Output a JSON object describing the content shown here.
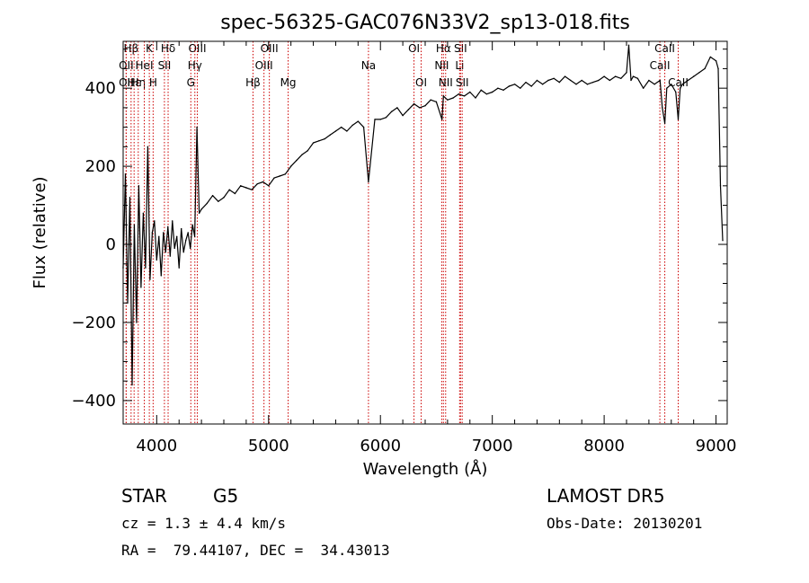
{
  "chart_data": {
    "type": "line",
    "title": "spec-56325-GAC076N33V2_sp13-018.fits",
    "xlabel": "Wavelength (Å)",
    "ylabel": "Flux (relative)",
    "xlim": [
      3700,
      9100
    ],
    "ylim": [
      -460,
      520
    ],
    "xticks": [
      4000,
      5000,
      6000,
      7000,
      8000,
      9000
    ],
    "yticks": [
      -400,
      -200,
      0,
      200,
      400
    ],
    "grid": false,
    "line_color": "#000000",
    "marker_color": "#cc0000",
    "series": [
      {
        "x": [
          3700,
          3720,
          3740,
          3760,
          3780,
          3800,
          3820,
          3840,
          3860,
          3880,
          3900,
          3920,
          3940,
          3960,
          3980,
          4000,
          4020,
          4040,
          4060,
          4080,
          4100,
          4120,
          4140,
          4160,
          4180,
          4200,
          4220,
          4240,
          4260,
          4280,
          4300,
          4320,
          4340,
          4360,
          4380,
          4400,
          4450,
          4500,
          4550,
          4600,
          4650,
          4700,
          4750,
          4800,
          4850,
          4900,
          4950,
          5000,
          5050,
          5100,
          5150,
          5200,
          5250,
          5300,
          5350,
          5400,
          5450,
          5500,
          5550,
          5600,
          5650,
          5700,
          5750,
          5800,
          5850,
          5893,
          5950,
          6000,
          6050,
          6100,
          6150,
          6200,
          6250,
          6300,
          6350,
          6400,
          6450,
          6500,
          6550,
          6563,
          6600,
          6650,
          6700,
          6750,
          6800,
          6850,
          6900,
          6950,
          7000,
          7050,
          7100,
          7150,
          7200,
          7250,
          7300,
          7350,
          7400,
          7450,
          7500,
          7550,
          7600,
          7650,
          7700,
          7750,
          7800,
          7850,
          7900,
          7950,
          8000,
          8050,
          8100,
          8150,
          8200,
          8220,
          8240,
          8260,
          8300,
          8350,
          8400,
          8450,
          8500,
          8520,
          8542,
          8560,
          8600,
          8640,
          8662,
          8680,
          8700,
          8750,
          8800,
          8850,
          8900,
          8950,
          9000,
          9020,
          9040,
          9060
        ],
        "y": [
          -60,
          180,
          -150,
          120,
          -360,
          50,
          -200,
          150,
          -110,
          80,
          -60,
          250,
          -90,
          30,
          60,
          -40,
          20,
          -80,
          30,
          -20,
          45,
          -30,
          60,
          -10,
          20,
          -60,
          40,
          -20,
          10,
          30,
          -10,
          50,
          20,
          300,
          80,
          90,
          105,
          125,
          110,
          120,
          140,
          130,
          150,
          145,
          140,
          155,
          160,
          150,
          170,
          175,
          180,
          200,
          215,
          230,
          240,
          260,
          265,
          270,
          280,
          290,
          300,
          290,
          305,
          315,
          300,
          160,
          320,
          320,
          325,
          340,
          350,
          330,
          345,
          360,
          350,
          355,
          370,
          365,
          320,
          380,
          370,
          375,
          385,
          380,
          390,
          375,
          395,
          385,
          390,
          400,
          395,
          405,
          410,
          400,
          415,
          405,
          420,
          410,
          420,
          425,
          415,
          430,
          420,
          410,
          420,
          410,
          415,
          420,
          430,
          420,
          430,
          425,
          440,
          510,
          420,
          430,
          425,
          400,
          420,
          410,
          420,
          350,
          310,
          400,
          410,
          390,
          320,
          400,
          410,
          420,
          430,
          440,
          450,
          480,
          470,
          450,
          150,
          10
        ]
      }
    ],
    "lines": [
      {
        "label": "Hβ",
        "x": 3771,
        "row": 1
      },
      {
        "label": "OII",
        "x": 3727,
        "row": 2
      },
      {
        "label": "OII",
        "x": 3727,
        "row": 3
      },
      {
        "label": "Hε",
        "x": 3798,
        "row": 3
      },
      {
        "label": "Hη",
        "x": 3835,
        "row": 3
      },
      {
        "label": "HeI",
        "x": 3889,
        "row": 2
      },
      {
        "label": "K",
        "x": 3934,
        "row": 1
      },
      {
        "label": "H",
        "x": 3968,
        "row": 3
      },
      {
        "label": "SII",
        "x": 4069,
        "row": 2
      },
      {
        "label": "Hδ",
        "x": 4102,
        "row": 1
      },
      {
        "label": "G",
        "x": 4305,
        "row": 3
      },
      {
        "label": "OIII",
        "x": 4363,
        "row": 1
      },
      {
        "label": "Hγ",
        "x": 4341,
        "row": 2
      },
      {
        "label": "Hβ",
        "x": 4861,
        "row": 3
      },
      {
        "label": "OIII",
        "x": 4959,
        "row": 2
      },
      {
        "label": "OIII",
        "x": 5007,
        "row": 1
      },
      {
        "label": "Mg",
        "x": 5175,
        "row": 3
      },
      {
        "label": "Na",
        "x": 5893,
        "row": 2
      },
      {
        "label": "OI",
        "x": 6300,
        "row": 1
      },
      {
        "label": "OI",
        "x": 6364,
        "row": 3
      },
      {
        "label": "NII",
        "x": 6548,
        "row": 2
      },
      {
        "label": "Hα",
        "x": 6563,
        "row": 1
      },
      {
        "label": "NII",
        "x": 6583,
        "row": 3
      },
      {
        "label": "Li",
        "x": 6708,
        "row": 2
      },
      {
        "label": "SII",
        "x": 6716,
        "row": 1
      },
      {
        "label": "SII",
        "x": 6731,
        "row": 3
      },
      {
        "label": "CaII",
        "x": 8498,
        "row": 2
      },
      {
        "label": "CaII",
        "x": 8542,
        "row": 1
      },
      {
        "label": "CaII",
        "x": 8662,
        "row": 3
      }
    ]
  },
  "info": {
    "class_label": "STAR",
    "subclass_label": "G5",
    "survey": "LAMOST DR5",
    "cz": "cz = 1.3 ± 4.4 km/s",
    "obs_date": "Obs-Date: 20130201",
    "radec": "RA =  79.44107, DEC =  34.43013"
  }
}
